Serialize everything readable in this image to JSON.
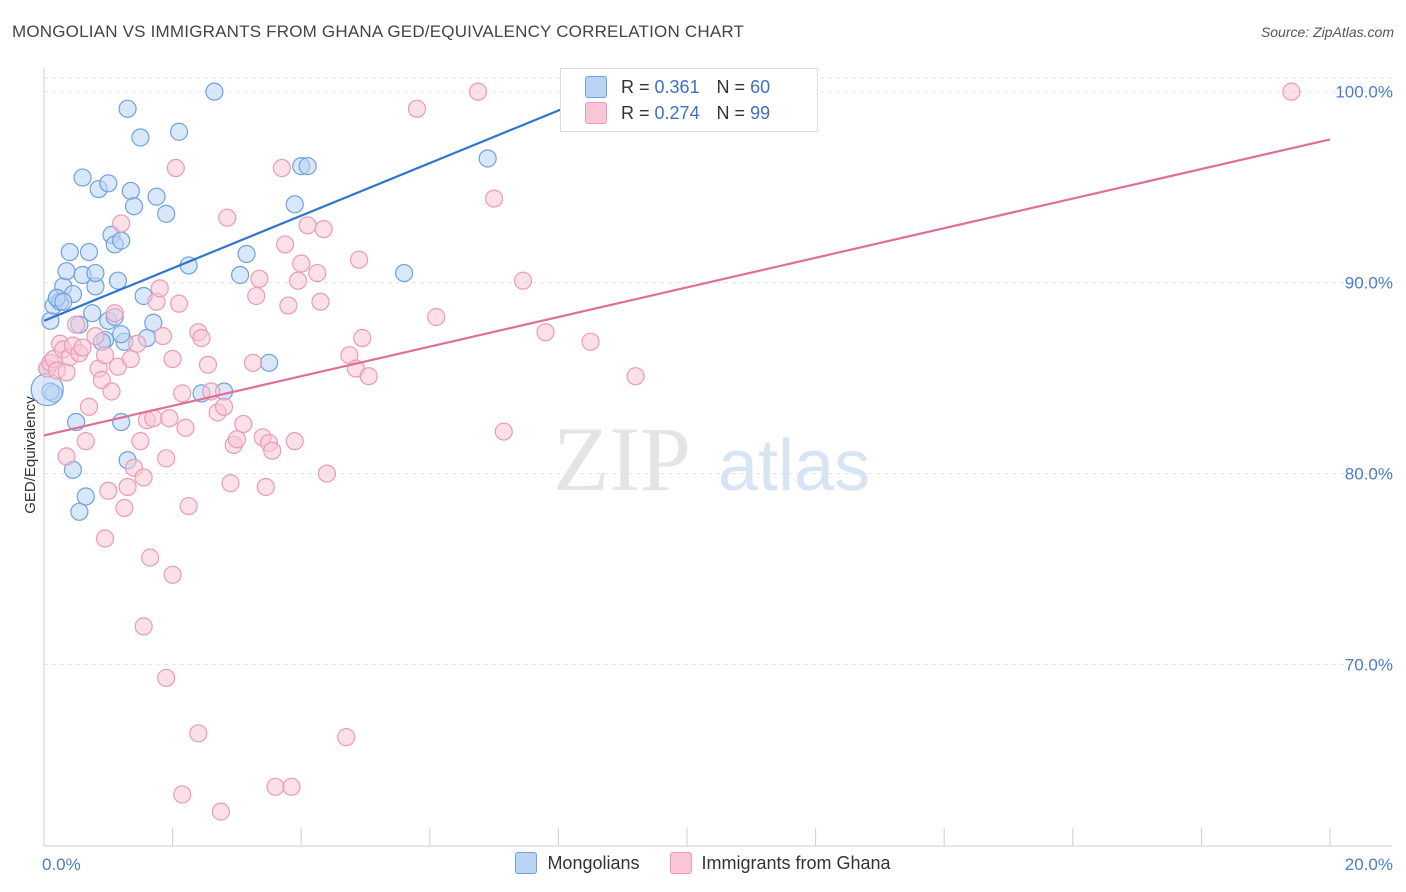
{
  "title": "MONGOLIAN VS IMMIGRANTS FROM GHANA GED/EQUIVALENCY CORRELATION CHART",
  "source": "Source: ZipAtlas.com",
  "watermark": {
    "zip": "ZIP",
    "atlas": "atlas"
  },
  "legend": {
    "r_label": "R =",
    "n_label": "N =",
    "series1": {
      "r": "0.361",
      "n": "60"
    },
    "series2": {
      "r": "0.274",
      "n": "99"
    }
  },
  "bottom_legend": {
    "series1": "Mongolians",
    "series2": "Immigrants from Ghana"
  },
  "colors": {
    "blue_fill": "#b9d4f5",
    "blue_stroke": "#6fa1dd",
    "blue_line": "#2f74cf",
    "pink_fill": "#f8c6d6",
    "pink_stroke": "#ec9ab6",
    "pink_line": "#e06f98",
    "tick_label": "#4a7cc9"
  },
  "chart_data": {
    "type": "scatter",
    "title": "MONGOLIAN VS IMMIGRANTS FROM GHANA GED/EQUIVALENCY CORRELATION CHART",
    "xlabel": "",
    "ylabel": "GED/Equivalency",
    "xlim": [
      0,
      20
    ],
    "ylim": [
      60.5,
      101.5
    ],
    "x_tick_labels": [
      "0.0%",
      "20.0%"
    ],
    "y_ticks": [
      70,
      80,
      90,
      100
    ],
    "y_tick_labels": [
      "70.0%",
      "80.0%",
      "90.0%",
      "100.0%"
    ],
    "series": [
      {
        "name": "Mongolians",
        "r": 0.361,
        "n": 60,
        "trend": {
          "x0": 0.0,
          "y0": 88.0,
          "x1": 8.5,
          "y1": 99.7
        },
        "points": [
          [
            0.1,
            88.0
          ],
          [
            0.15,
            88.8
          ],
          [
            0.2,
            89.2
          ],
          [
            0.25,
            89.0
          ],
          [
            0.3,
            89.8
          ],
          [
            0.35,
            90.6
          ],
          [
            0.4,
            91.6
          ],
          [
            0.45,
            89.4
          ],
          [
            0.6,
            95.5
          ],
          [
            0.6,
            90.4
          ],
          [
            0.7,
            91.6
          ],
          [
            0.8,
            89.8
          ],
          [
            0.8,
            90.5
          ],
          [
            0.85,
            94.9
          ],
          [
            1.0,
            95.2
          ],
          [
            1.0,
            88.0
          ],
          [
            1.05,
            92.5
          ],
          [
            1.1,
            92.0
          ],
          [
            1.15,
            90.1
          ],
          [
            1.2,
            92.2
          ],
          [
            1.25,
            86.9
          ],
          [
            1.3,
            99.1
          ],
          [
            1.35,
            94.8
          ],
          [
            1.4,
            94.0
          ],
          [
            1.5,
            97.6
          ],
          [
            1.75,
            94.5
          ],
          [
            1.9,
            93.6
          ],
          [
            2.1,
            97.9
          ],
          [
            2.25,
            90.9
          ],
          [
            2.65,
            100.0
          ],
          [
            3.05,
            90.4
          ],
          [
            3.15,
            91.5
          ],
          [
            3.5,
            85.8
          ],
          [
            3.9,
            94.1
          ],
          [
            4.0,
            96.1
          ],
          [
            4.1,
            96.1
          ],
          [
            5.6,
            90.5
          ],
          [
            6.9,
            96.5
          ],
          [
            0.05,
            85.5
          ],
          [
            0.15,
            84.2
          ],
          [
            0.5,
            82.7
          ],
          [
            0.45,
            80.2
          ],
          [
            0.55,
            78.0
          ],
          [
            0.65,
            78.8
          ],
          [
            0.95,
            87.0
          ],
          [
            1.2,
            87.3
          ],
          [
            1.2,
            82.7
          ],
          [
            1.3,
            80.7
          ],
          [
            1.6,
            87.1
          ],
          [
            1.7,
            87.9
          ],
          [
            1.55,
            89.3
          ],
          [
            2.45,
            84.2
          ],
          [
            2.8,
            84.3
          ],
          [
            0.2,
            89.2
          ],
          [
            0.3,
            89.0
          ],
          [
            0.55,
            87.8
          ],
          [
            0.75,
            88.4
          ],
          [
            0.9,
            86.9
          ],
          [
            1.1,
            88.2
          ],
          [
            0.1,
            84.3
          ]
        ]
      },
      {
        "name": "Immigrants from Ghana",
        "r": 0.274,
        "n": 99,
        "trend": {
          "x0": 0.0,
          "y0": 82.0,
          "x1": 20.0,
          "y1": 97.5
        },
        "points": [
          [
            0.05,
            85.5
          ],
          [
            0.1,
            85.8
          ],
          [
            0.15,
            86.0
          ],
          [
            0.2,
            85.4
          ],
          [
            0.25,
            86.8
          ],
          [
            0.3,
            86.5
          ],
          [
            0.35,
            85.3
          ],
          [
            0.4,
            86.1
          ],
          [
            0.45,
            86.7
          ],
          [
            0.5,
            87.8
          ],
          [
            0.55,
            86.3
          ],
          [
            0.6,
            86.6
          ],
          [
            0.65,
            81.7
          ],
          [
            0.7,
            83.5
          ],
          [
            0.8,
            87.2
          ],
          [
            0.85,
            85.5
          ],
          [
            0.9,
            84.9
          ],
          [
            0.95,
            86.2
          ],
          [
            1.0,
            79.1
          ],
          [
            1.05,
            84.3
          ],
          [
            1.1,
            88.4
          ],
          [
            1.15,
            85.6
          ],
          [
            1.2,
            93.1
          ],
          [
            1.25,
            78.2
          ],
          [
            1.3,
            79.3
          ],
          [
            1.35,
            86.0
          ],
          [
            1.4,
            80.3
          ],
          [
            1.45,
            86.8
          ],
          [
            1.5,
            81.7
          ],
          [
            1.55,
            79.8
          ],
          [
            1.6,
            82.8
          ],
          [
            1.7,
            82.9
          ],
          [
            1.75,
            89.0
          ],
          [
            1.8,
            89.7
          ],
          [
            1.85,
            87.2
          ],
          [
            1.9,
            80.8
          ],
          [
            1.95,
            82.9
          ],
          [
            2.0,
            86.0
          ],
          [
            2.05,
            96.0
          ],
          [
            2.1,
            88.9
          ],
          [
            2.15,
            84.2
          ],
          [
            2.2,
            82.4
          ],
          [
            2.25,
            78.3
          ],
          [
            2.4,
            87.4
          ],
          [
            2.45,
            87.1
          ],
          [
            2.55,
            85.7
          ],
          [
            2.6,
            84.3
          ],
          [
            2.7,
            83.2
          ],
          [
            2.8,
            83.5
          ],
          [
            2.85,
            93.4
          ],
          [
            2.9,
            79.5
          ],
          [
            2.95,
            81.5
          ],
          [
            3.0,
            81.8
          ],
          [
            3.1,
            82.6
          ],
          [
            3.25,
            85.8
          ],
          [
            3.3,
            89.3
          ],
          [
            3.35,
            90.2
          ],
          [
            3.4,
            81.9
          ],
          [
            3.45,
            79.3
          ],
          [
            3.5,
            81.6
          ],
          [
            3.55,
            81.2
          ],
          [
            3.7,
            96.0
          ],
          [
            3.75,
            92.0
          ],
          [
            3.8,
            88.8
          ],
          [
            3.9,
            81.7
          ],
          [
            3.95,
            90.1
          ],
          [
            4.0,
            91.0
          ],
          [
            4.1,
            93.0
          ],
          [
            4.25,
            90.5
          ],
          [
            4.3,
            89.0
          ],
          [
            4.35,
            92.8
          ],
          [
            4.4,
            80.0
          ],
          [
            4.75,
            86.2
          ],
          [
            4.85,
            85.5
          ],
          [
            4.9,
            91.2
          ],
          [
            4.95,
            87.1
          ],
          [
            5.05,
            85.1
          ],
          [
            5.8,
            99.1
          ],
          [
            6.1,
            88.2
          ],
          [
            6.75,
            100.0
          ],
          [
            7.0,
            94.4
          ],
          [
            7.15,
            82.2
          ],
          [
            7.45,
            90.1
          ],
          [
            7.8,
            87.4
          ],
          [
            8.5,
            86.9
          ],
          [
            9.2,
            85.1
          ],
          [
            19.4,
            100.0
          ],
          [
            0.35,
            80.9
          ],
          [
            0.95,
            76.6
          ],
          [
            1.65,
            75.6
          ],
          [
            1.55,
            72.0
          ],
          [
            1.9,
            69.3
          ],
          [
            2.0,
            74.7
          ],
          [
            2.4,
            66.4
          ],
          [
            2.15,
            63.2
          ],
          [
            2.75,
            62.3
          ],
          [
            3.6,
            63.6
          ],
          [
            3.85,
            63.6
          ],
          [
            4.7,
            66.2
          ]
        ]
      }
    ]
  }
}
